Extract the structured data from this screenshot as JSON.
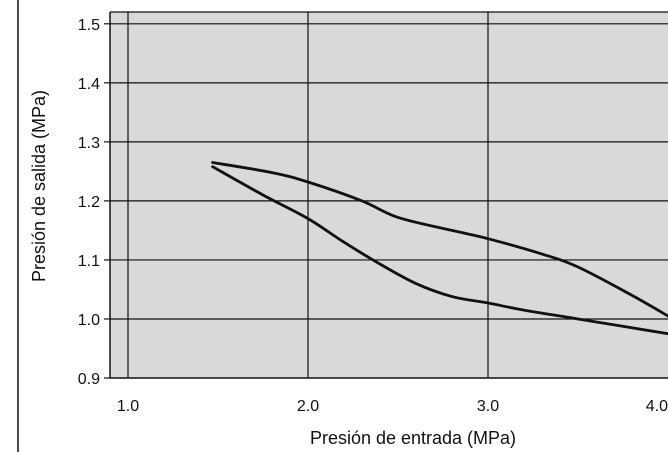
{
  "chart_data": {
    "type": "line",
    "title": "",
    "xlabel": "Presión de entrada (MPa)",
    "ylabel": "Presión de salida (MPa)",
    "xlim": [
      0.9,
      4.0
    ],
    "ylim": [
      0.9,
      1.52
    ],
    "x_ticks": [
      1.0,
      2.0,
      3.0,
      4.0
    ],
    "x_tick_labels": [
      "1.0",
      "2.0",
      "3.0",
      "4.0"
    ],
    "y_ticks": [
      0.9,
      1.0,
      1.1,
      1.2,
      1.3,
      1.4,
      1.5
    ],
    "y_tick_labels": [
      "0.9",
      "1.0",
      "1.1",
      "1.2",
      "1.3",
      "1.4",
      "1.5"
    ],
    "grid": true,
    "plot_background": "#d9d9d9",
    "line_color": "#111111",
    "series": [
      {
        "points": [
          [
            1.47,
            1.265
          ],
          [
            1.8,
            1.248
          ],
          [
            2.0,
            1.232
          ],
          [
            2.3,
            1.2
          ],
          [
            2.5,
            1.172
          ],
          [
            2.8,
            1.15
          ],
          [
            3.0,
            1.136
          ],
          [
            3.3,
            1.11
          ],
          [
            3.5,
            1.088
          ],
          [
            3.8,
            1.04
          ],
          [
            4.0,
            1.005
          ]
        ]
      },
      {
        "points": [
          [
            1.47,
            1.258
          ],
          [
            1.75,
            1.21
          ],
          [
            2.0,
            1.17
          ],
          [
            2.2,
            1.13
          ],
          [
            2.4,
            1.093
          ],
          [
            2.6,
            1.06
          ],
          [
            2.8,
            1.038
          ],
          [
            3.0,
            1.027
          ],
          [
            3.2,
            1.015
          ],
          [
            3.5,
            1.0
          ],
          [
            4.0,
            0.975
          ]
        ]
      }
    ]
  }
}
